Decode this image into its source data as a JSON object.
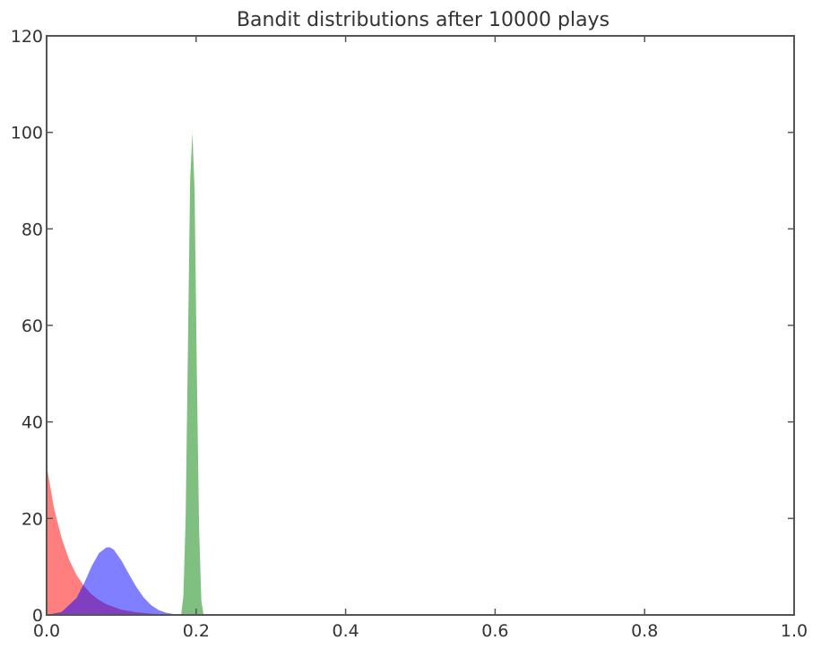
{
  "chart_data": {
    "type": "area",
    "title": "Bandit distributions after 10000 plays",
    "xlabel": "",
    "ylabel": "",
    "xlim": [
      0.0,
      1.0
    ],
    "ylim": [
      0,
      120
    ],
    "grid": false,
    "x_ticks": [
      "0.0",
      "0.2",
      "0.4",
      "0.6",
      "0.8",
      "1.0"
    ],
    "y_ticks": [
      "0",
      "20",
      "40",
      "60",
      "80",
      "100",
      "120"
    ],
    "series": [
      {
        "color": "#ff0000",
        "opacity": 0.5,
        "x": [
          0.0,
          0.01,
          0.02,
          0.03,
          0.04,
          0.05,
          0.06,
          0.07,
          0.08,
          0.1,
          0.12,
          0.14,
          0.16,
          0.18
        ],
        "y": [
          31,
          22,
          16,
          11.5,
          8.3,
          6.0,
          4.3,
          3.1,
          2.2,
          1.1,
          0.55,
          0.25,
          0.1,
          0.0
        ]
      },
      {
        "color": "#0000ff",
        "opacity": 0.5,
        "x": [
          0.0,
          0.02,
          0.04,
          0.05,
          0.06,
          0.07,
          0.08,
          0.085,
          0.09,
          0.1,
          0.11,
          0.12,
          0.13,
          0.14,
          0.15,
          0.16,
          0.17,
          0.18,
          0.19
        ],
        "y": [
          0.0,
          0.6,
          3.5,
          6.5,
          10.0,
          12.8,
          14.0,
          14.0,
          13.5,
          11.3,
          8.5,
          5.8,
          3.6,
          2.0,
          1.0,
          0.45,
          0.18,
          0.05,
          0.0
        ]
      },
      {
        "color": "#008000",
        "opacity": 0.5,
        "x": [
          0.18,
          0.183,
          0.186,
          0.189,
          0.192,
          0.195,
          0.198,
          0.201,
          0.204,
          0.207,
          0.21
        ],
        "y": [
          0.0,
          4.0,
          20.0,
          55.0,
          90.0,
          100.0,
          88.0,
          50.0,
          18.0,
          3.0,
          0.0
        ]
      }
    ]
  }
}
